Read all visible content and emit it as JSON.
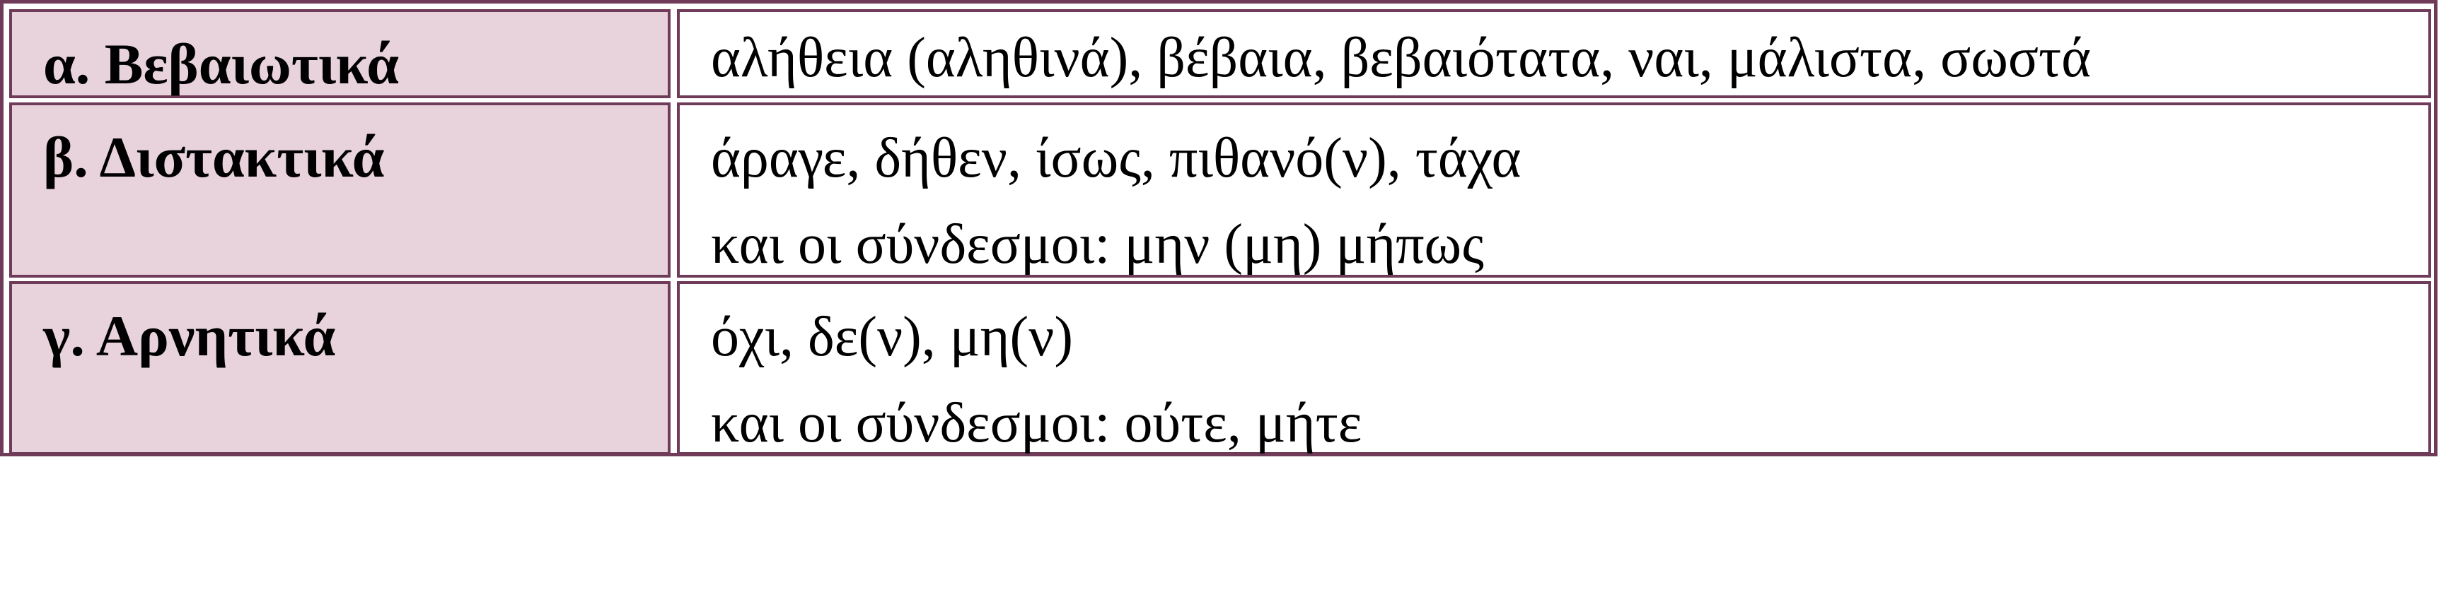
{
  "table": {
    "border_color": "#6f3b58",
    "label_bg": "#e8d2dc",
    "rows": [
      {
        "label": "α. Βεβαιωτικά",
        "lines": [
          "αλήθεια (αληθινά), βέβαια, βεβαιότατα, ναι, μάλιστα, σωστά"
        ]
      },
      {
        "label": "β. Διστακτικά",
        "lines": [
          "άραγε, δήθεν, ίσως, πιθανό(ν), τάχα",
          "και οι σύνδεσμοι: μην (μη) μήπως"
        ]
      },
      {
        "label": "γ. Αρνητικά",
        "lines": [
          "όχι, δε(ν), μη(ν)",
          "και οι σύνδεσμοι: ούτε, μήτε"
        ]
      }
    ]
  }
}
